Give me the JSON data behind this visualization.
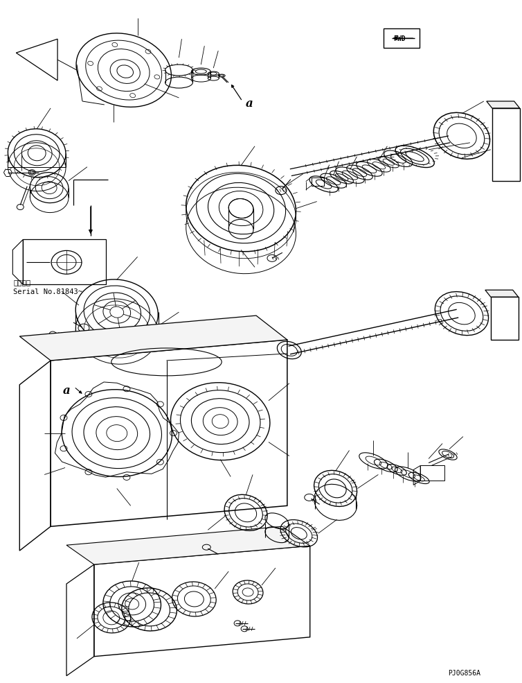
{
  "figure_width": 7.54,
  "figure_height": 9.85,
  "dpi": 100,
  "bg": "#ffffff",
  "lc": "#000000",
  "watermark": "PJ0G856A",
  "serial_line1": "通用号機",
  "serial_line2": "Serial No.81843~",
  "serial_fontsize": 7.5,
  "watermark_fontsize": 7
}
